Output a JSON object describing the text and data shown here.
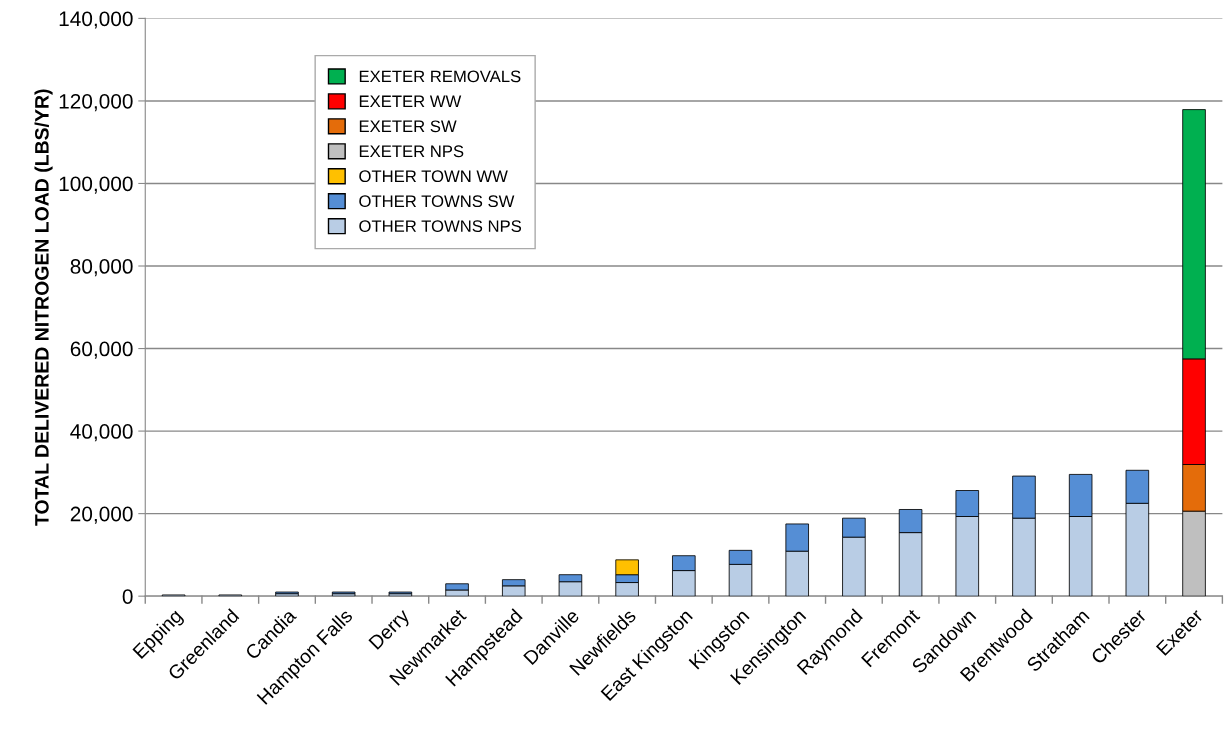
{
  "chart_data": {
    "type": "bar",
    "stacked": true,
    "ylabel": "TOTAL DELIVERED NITROGEN LOAD (LBS/YR)",
    "categories": [
      "Epping",
      "Greenland",
      "Candia",
      "Hampton Falls",
      "Derry",
      "Newmarket",
      "Hampstead",
      "Danville",
      "Newfields",
      "East Kingston",
      "Kingston",
      "Kensington",
      "Raymond",
      "Fremont",
      "Sandown",
      "Brentwood",
      "Stratham",
      "Chester",
      "Exeter"
    ],
    "series": [
      {
        "name": "OTHER TOWNS NPS",
        "color": "#b9cde5",
        "values": [
          300,
          300,
          600,
          600,
          600,
          1500,
          2500,
          3500,
          3300,
          6200,
          7700,
          10900,
          14300,
          15400,
          19300,
          18900,
          19300,
          22500,
          null
        ]
      },
      {
        "name": "OTHER TOWNS SW",
        "color": "#558ed5",
        "values": [
          null,
          null,
          400,
          400,
          400,
          1500,
          1500,
          1700,
          1900,
          3600,
          3400,
          6600,
          4600,
          5600,
          6300,
          10200,
          10200,
          8000,
          null
        ]
      },
      {
        "name": "OTHER TOWN WW",
        "color": "#ffc000",
        "values": [
          null,
          null,
          null,
          null,
          null,
          null,
          null,
          null,
          3600,
          null,
          null,
          null,
          null,
          null,
          null,
          null,
          null,
          null,
          null
        ]
      },
      {
        "name": "EXETER NPS",
        "color": "#bfbfbf",
        "values": [
          null,
          null,
          null,
          null,
          null,
          null,
          null,
          null,
          null,
          null,
          null,
          null,
          null,
          null,
          null,
          null,
          null,
          null,
          20600
        ]
      },
      {
        "name": "EXETER SW",
        "color": "#e46c0a",
        "values": [
          null,
          null,
          null,
          null,
          null,
          null,
          null,
          null,
          null,
          null,
          null,
          null,
          null,
          null,
          null,
          null,
          null,
          null,
          11300
        ]
      },
      {
        "name": "EXETER WW",
        "color": "#ff0000",
        "values": [
          null,
          null,
          null,
          null,
          null,
          null,
          null,
          null,
          null,
          null,
          null,
          null,
          null,
          null,
          null,
          null,
          null,
          null,
          25600
        ]
      },
      {
        "name": "EXETER REMOVALS",
        "color": "#00b050",
        "values": [
          null,
          null,
          null,
          null,
          null,
          null,
          null,
          null,
          null,
          null,
          null,
          null,
          null,
          null,
          null,
          null,
          null,
          null,
          60400
        ]
      }
    ],
    "ylim": [
      0,
      140000
    ],
    "yticks": [
      {
        "value": 0,
        "label": "0"
      },
      {
        "value": 20000,
        "label": "20,000"
      },
      {
        "value": 40000,
        "label": "40,000"
      },
      {
        "value": 60000,
        "label": "60,000"
      },
      {
        "value": 80000,
        "label": "80,000"
      },
      {
        "value": 100000,
        "label": "100,000"
      },
      {
        "value": 120000,
        "label": "120,000"
      },
      {
        "value": 140000,
        "label": "140,000"
      }
    ],
    "grid": "y",
    "legend": "top left"
  }
}
